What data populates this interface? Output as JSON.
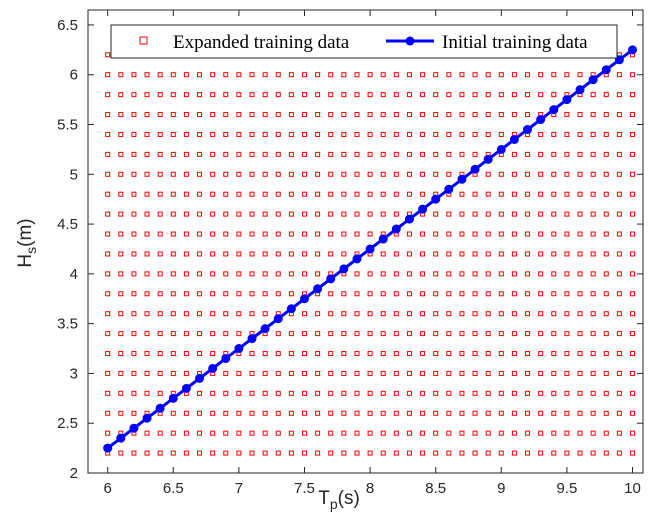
{
  "chart_data": {
    "type": "scatter",
    "xlabel": {
      "main": "T",
      "sub": "p",
      "unit": "(s)"
    },
    "ylabel": {
      "main": "H",
      "sub": "s",
      "unit": "(m)"
    },
    "xlim": [
      5.85,
      10.08
    ],
    "ylim": [
      2.0,
      6.65
    ],
    "xticks": [
      6,
      6.5,
      7,
      7.5,
      8,
      8.5,
      9,
      9.5,
      10
    ],
    "xtick_labels": [
      "6",
      "6.5",
      "7",
      "7.5",
      "8",
      "8.5",
      "9",
      "9.5",
      "10"
    ],
    "yticks": [
      2,
      2.5,
      3,
      3.5,
      4,
      4.5,
      5,
      5.5,
      6,
      6.5
    ],
    "ytick_labels": [
      "2",
      "2.5",
      "3",
      "3.5",
      "4",
      "4.5",
      "5",
      "5.5",
      "6",
      "6.5"
    ],
    "grid": false,
    "legend_position": "top-right",
    "series": [
      {
        "name": "Expanded training data",
        "marker": "square-open",
        "color": "#ff0000",
        "grid": {
          "x_start": 6.0,
          "x_end": 10.0,
          "x_step": 0.1,
          "y_start": 2.2,
          "y_end": 6.2,
          "y_step": 0.2
        }
      },
      {
        "name": "Initial training data",
        "marker": "circle-filled-line",
        "color": "#0000ff",
        "x_start": 6.0,
        "x_end": 10.0,
        "x_step": 0.1,
        "y_start": 2.25,
        "y_end": 6.25
      }
    ]
  }
}
